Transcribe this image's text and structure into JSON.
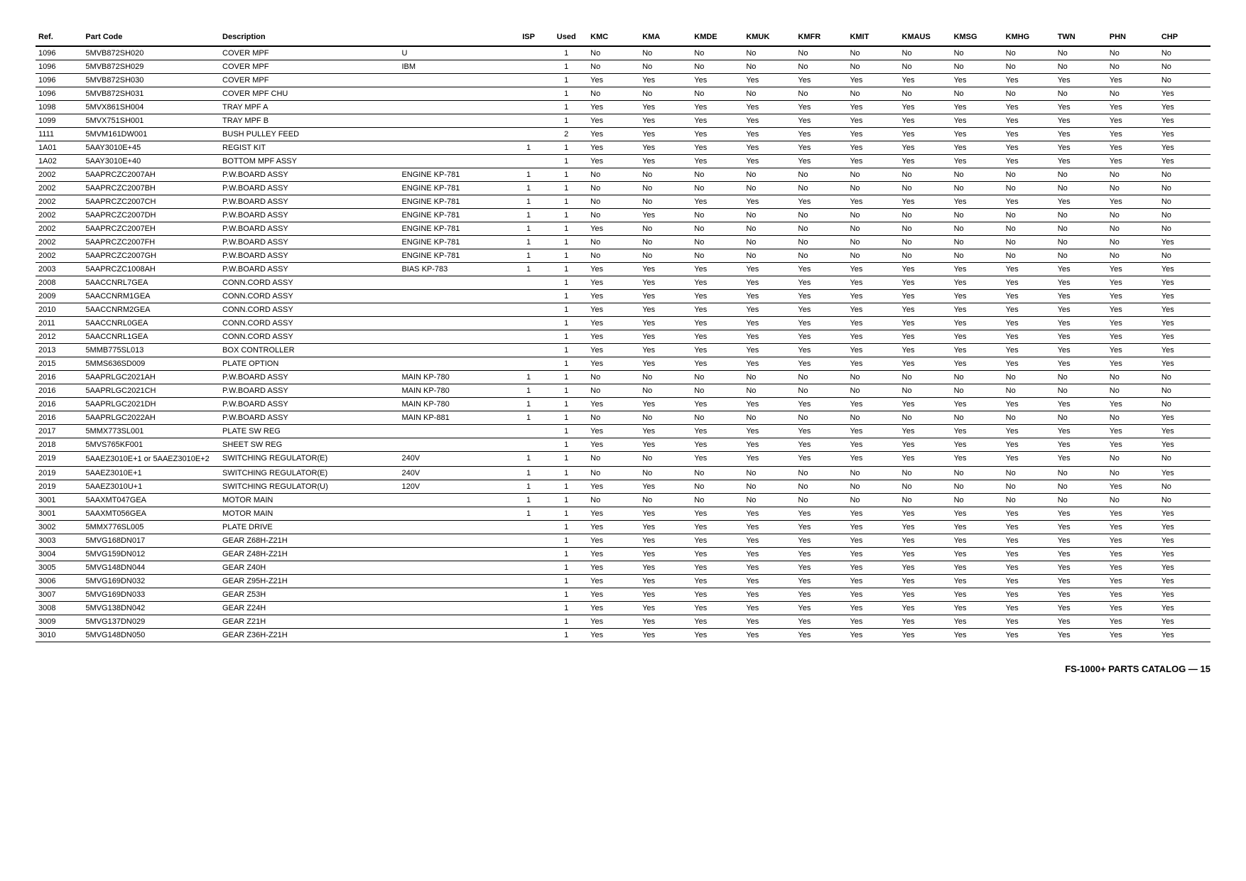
{
  "table": {
    "columns": [
      "Ref.",
      "Part Code",
      "Description",
      "",
      "ISP",
      "Used",
      "KMC",
      "KMA",
      "KMDE",
      "KMUK",
      "KMFR",
      "KMIT",
      "KMAUS",
      "KMSG",
      "KMHG",
      "TWN",
      "PHN",
      "CHP"
    ],
    "rows": [
      [
        "1096",
        "5MVB872SH020",
        "COVER MPF",
        "U",
        "",
        "1",
        "No",
        "No",
        "No",
        "No",
        "No",
        "No",
        "No",
        "No",
        "No",
        "No",
        "No",
        "No"
      ],
      [
        "1096",
        "5MVB872SH029",
        "COVER MPF",
        "IBM",
        "",
        "1",
        "No",
        "No",
        "No",
        "No",
        "No",
        "No",
        "No",
        "No",
        "No",
        "No",
        "No",
        "No"
      ],
      [
        "1096",
        "5MVB872SH030",
        "COVER MPF",
        "",
        "",
        "1",
        "Yes",
        "Yes",
        "Yes",
        "Yes",
        "Yes",
        "Yes",
        "Yes",
        "Yes",
        "Yes",
        "Yes",
        "Yes",
        "No"
      ],
      [
        "1096",
        "5MVB872SH031",
        "COVER MPF CHU",
        "",
        "",
        "1",
        "No",
        "No",
        "No",
        "No",
        "No",
        "No",
        "No",
        "No",
        "No",
        "No",
        "No",
        "Yes"
      ],
      [
        "1098",
        "5MVX861SH004",
        "TRAY MPF A",
        "",
        "",
        "1",
        "Yes",
        "Yes",
        "Yes",
        "Yes",
        "Yes",
        "Yes",
        "Yes",
        "Yes",
        "Yes",
        "Yes",
        "Yes",
        "Yes"
      ],
      [
        "1099",
        "5MVX751SH001",
        "TRAY MPF B",
        "",
        "",
        "1",
        "Yes",
        "Yes",
        "Yes",
        "Yes",
        "Yes",
        "Yes",
        "Yes",
        "Yes",
        "Yes",
        "Yes",
        "Yes",
        "Yes"
      ],
      [
        "1111",
        "5MVM161DW001",
        "BUSH PULLEY FEED",
        "",
        "",
        "2",
        "Yes",
        "Yes",
        "Yes",
        "Yes",
        "Yes",
        "Yes",
        "Yes",
        "Yes",
        "Yes",
        "Yes",
        "Yes",
        "Yes"
      ],
      [
        "1A01",
        "5AAY3010E+45",
        "REGIST KIT",
        "",
        "1",
        "1",
        "Yes",
        "Yes",
        "Yes",
        "Yes",
        "Yes",
        "Yes",
        "Yes",
        "Yes",
        "Yes",
        "Yes",
        "Yes",
        "Yes"
      ],
      [
        "1A02",
        "5AAY3010E+40",
        "BOTTOM MPF ASSY",
        "",
        "",
        "1",
        "Yes",
        "Yes",
        "Yes",
        "Yes",
        "Yes",
        "Yes",
        "Yes",
        "Yes",
        "Yes",
        "Yes",
        "Yes",
        "Yes"
      ],
      [
        "2002",
        "5AAPRCZC2007AH",
        "P.W.BOARD ASSY",
        "ENGINE KP-781",
        "1",
        "1",
        "No",
        "No",
        "No",
        "No",
        "No",
        "No",
        "No",
        "No",
        "No",
        "No",
        "No",
        "No"
      ],
      [
        "2002",
        "5AAPRCZC2007BH",
        "P.W.BOARD ASSY",
        "ENGINE KP-781",
        "1",
        "1",
        "No",
        "No",
        "No",
        "No",
        "No",
        "No",
        "No",
        "No",
        "No",
        "No",
        "No",
        "No"
      ],
      [
        "2002",
        "5AAPRCZC2007CH",
        "P.W.BOARD ASSY",
        "ENGINE KP-781",
        "1",
        "1",
        "No",
        "No",
        "Yes",
        "Yes",
        "Yes",
        "Yes",
        "Yes",
        "Yes",
        "Yes",
        "Yes",
        "Yes",
        "No"
      ],
      [
        "2002",
        "5AAPRCZC2007DH",
        "P.W.BOARD ASSY",
        "ENGINE KP-781",
        "1",
        "1",
        "No",
        "Yes",
        "No",
        "No",
        "No",
        "No",
        "No",
        "No",
        "No",
        "No",
        "No",
        "No"
      ],
      [
        "2002",
        "5AAPRCZC2007EH",
        "P.W.BOARD ASSY",
        "ENGINE KP-781",
        "1",
        "1",
        "Yes",
        "No",
        "No",
        "No",
        "No",
        "No",
        "No",
        "No",
        "No",
        "No",
        "No",
        "No"
      ],
      [
        "2002",
        "5AAPRCZC2007FH",
        "P.W.BOARD ASSY",
        "ENGINE KP-781",
        "1",
        "1",
        "No",
        "No",
        "No",
        "No",
        "No",
        "No",
        "No",
        "No",
        "No",
        "No",
        "No",
        "Yes"
      ],
      [
        "2002",
        "5AAPRCZC2007GH",
        "P.W.BOARD ASSY",
        "ENGINE KP-781",
        "1",
        "1",
        "No",
        "No",
        "No",
        "No",
        "No",
        "No",
        "No",
        "No",
        "No",
        "No",
        "No",
        "No"
      ],
      [
        "2003",
        "5AAPRCZC1008AH",
        "P.W.BOARD ASSY",
        "BIAS KP-783",
        "1",
        "1",
        "Yes",
        "Yes",
        "Yes",
        "Yes",
        "Yes",
        "Yes",
        "Yes",
        "Yes",
        "Yes",
        "Yes",
        "Yes",
        "Yes"
      ],
      [
        "2008",
        "5AACCNRL7GEA",
        "CONN.CORD ASSY",
        "",
        "",
        "1",
        "Yes",
        "Yes",
        "Yes",
        "Yes",
        "Yes",
        "Yes",
        "Yes",
        "Yes",
        "Yes",
        "Yes",
        "Yes",
        "Yes"
      ],
      [
        "2009",
        "5AACCNRM1GEA",
        "CONN.CORD ASSY",
        "",
        "",
        "1",
        "Yes",
        "Yes",
        "Yes",
        "Yes",
        "Yes",
        "Yes",
        "Yes",
        "Yes",
        "Yes",
        "Yes",
        "Yes",
        "Yes"
      ],
      [
        "2010",
        "5AACCNRM2GEA",
        "CONN.CORD ASSY",
        "",
        "",
        "1",
        "Yes",
        "Yes",
        "Yes",
        "Yes",
        "Yes",
        "Yes",
        "Yes",
        "Yes",
        "Yes",
        "Yes",
        "Yes",
        "Yes"
      ],
      [
        "2011",
        "5AACCNRL0GEA",
        "CONN.CORD ASSY",
        "",
        "",
        "1",
        "Yes",
        "Yes",
        "Yes",
        "Yes",
        "Yes",
        "Yes",
        "Yes",
        "Yes",
        "Yes",
        "Yes",
        "Yes",
        "Yes"
      ],
      [
        "2012",
        "5AACCNRL1GEA",
        "CONN.CORD ASSY",
        "",
        "",
        "1",
        "Yes",
        "Yes",
        "Yes",
        "Yes",
        "Yes",
        "Yes",
        "Yes",
        "Yes",
        "Yes",
        "Yes",
        "Yes",
        "Yes"
      ],
      [
        "2013",
        "5MMB775SL013",
        "BOX CONTROLLER",
        "",
        "",
        "1",
        "Yes",
        "Yes",
        "Yes",
        "Yes",
        "Yes",
        "Yes",
        "Yes",
        "Yes",
        "Yes",
        "Yes",
        "Yes",
        "Yes"
      ],
      [
        "2015",
        "5MMS636SD009",
        "PLATE OPTION",
        "",
        "",
        "1",
        "Yes",
        "Yes",
        "Yes",
        "Yes",
        "Yes",
        "Yes",
        "Yes",
        "Yes",
        "Yes",
        "Yes",
        "Yes",
        "Yes"
      ],
      [
        "2016",
        "5AAPRLGC2021AH",
        "P.W.BOARD ASSY",
        "MAIN KP-780",
        "1",
        "1",
        "No",
        "No",
        "No",
        "No",
        "No",
        "No",
        "No",
        "No",
        "No",
        "No",
        "No",
        "No"
      ],
      [
        "2016",
        "5AAPRLGC2021CH",
        "P.W.BOARD ASSY",
        "MAIN KP-780",
        "1",
        "1",
        "No",
        "No",
        "No",
        "No",
        "No",
        "No",
        "No",
        "No",
        "No",
        "No",
        "No",
        "No"
      ],
      [
        "2016",
        "5AAPRLGC2021DH",
        "P.W.BOARD ASSY",
        "MAIN KP-780",
        "1",
        "1",
        "Yes",
        "Yes",
        "Yes",
        "Yes",
        "Yes",
        "Yes",
        "Yes",
        "Yes",
        "Yes",
        "Yes",
        "Yes",
        "No"
      ],
      [
        "2016",
        "5AAPRLGC2022AH",
        "P.W.BOARD ASSY",
        "MAIN KP-881",
        "1",
        "1",
        "No",
        "No",
        "No",
        "No",
        "No",
        "No",
        "No",
        "No",
        "No",
        "No",
        "No",
        "Yes"
      ],
      [
        "2017",
        "5MMX773SL001",
        "PLATE SW REG",
        "",
        "",
        "1",
        "Yes",
        "Yes",
        "Yes",
        "Yes",
        "Yes",
        "Yes",
        "Yes",
        "Yes",
        "Yes",
        "Yes",
        "Yes",
        "Yes"
      ],
      [
        "2018",
        "5MVS765KF001",
        "SHEET SW REG",
        "",
        "",
        "1",
        "Yes",
        "Yes",
        "Yes",
        "Yes",
        "Yes",
        "Yes",
        "Yes",
        "Yes",
        "Yes",
        "Yes",
        "Yes",
        "Yes"
      ],
      [
        "2019",
        "5AAEZ3010E+1 or 5AAEZ3010E+2",
        "SWITCHING REGULATOR(E)",
        "240V",
        "1",
        "1",
        "No",
        "No",
        "Yes",
        "Yes",
        "Yes",
        "Yes",
        "Yes",
        "Yes",
        "Yes",
        "Yes",
        "No",
        "No"
      ],
      [
        "2019",
        "5AAEZ3010E+1",
        "SWITCHING REGULATOR(E)",
        "240V",
        "1",
        "1",
        "No",
        "No",
        "No",
        "No",
        "No",
        "No",
        "No",
        "No",
        "No",
        "No",
        "No",
        "Yes"
      ],
      [
        "2019",
        "5AAEZ3010U+1",
        "SWITCHING REGULATOR(U)",
        "120V",
        "1",
        "1",
        "Yes",
        "Yes",
        "No",
        "No",
        "No",
        "No",
        "No",
        "No",
        "No",
        "No",
        "Yes",
        "No"
      ],
      [
        "3001",
        "5AAXMT047GEA",
        "MOTOR MAIN",
        "",
        "1",
        "1",
        "No",
        "No",
        "No",
        "No",
        "No",
        "No",
        "No",
        "No",
        "No",
        "No",
        "No",
        "No"
      ],
      [
        "3001",
        "5AAXMT056GEA",
        "MOTOR MAIN",
        "",
        "1",
        "1",
        "Yes",
        "Yes",
        "Yes",
        "Yes",
        "Yes",
        "Yes",
        "Yes",
        "Yes",
        "Yes",
        "Yes",
        "Yes",
        "Yes"
      ],
      [
        "3002",
        "5MMX776SL005",
        "PLATE DRIVE",
        "",
        "",
        "1",
        "Yes",
        "Yes",
        "Yes",
        "Yes",
        "Yes",
        "Yes",
        "Yes",
        "Yes",
        "Yes",
        "Yes",
        "Yes",
        "Yes"
      ],
      [
        "3003",
        "5MVG168DN017",
        "GEAR Z68H-Z21H",
        "",
        "",
        "1",
        "Yes",
        "Yes",
        "Yes",
        "Yes",
        "Yes",
        "Yes",
        "Yes",
        "Yes",
        "Yes",
        "Yes",
        "Yes",
        "Yes"
      ],
      [
        "3004",
        "5MVG159DN012",
        "GEAR Z48H-Z21H",
        "",
        "",
        "1",
        "Yes",
        "Yes",
        "Yes",
        "Yes",
        "Yes",
        "Yes",
        "Yes",
        "Yes",
        "Yes",
        "Yes",
        "Yes",
        "Yes"
      ],
      [
        "3005",
        "5MVG148DN044",
        "GEAR Z40H",
        "",
        "",
        "1",
        "Yes",
        "Yes",
        "Yes",
        "Yes",
        "Yes",
        "Yes",
        "Yes",
        "Yes",
        "Yes",
        "Yes",
        "Yes",
        "Yes"
      ],
      [
        "3006",
        "5MVG169DN032",
        "GEAR Z95H-Z21H",
        "",
        "",
        "1",
        "Yes",
        "Yes",
        "Yes",
        "Yes",
        "Yes",
        "Yes",
        "Yes",
        "Yes",
        "Yes",
        "Yes",
        "Yes",
        "Yes"
      ],
      [
        "3007",
        "5MVG169DN033",
        "GEAR Z53H",
        "",
        "",
        "1",
        "Yes",
        "Yes",
        "Yes",
        "Yes",
        "Yes",
        "Yes",
        "Yes",
        "Yes",
        "Yes",
        "Yes",
        "Yes",
        "Yes"
      ],
      [
        "3008",
        "5MVG138DN042",
        "GEAR Z24H",
        "",
        "",
        "1",
        "Yes",
        "Yes",
        "Yes",
        "Yes",
        "Yes",
        "Yes",
        "Yes",
        "Yes",
        "Yes",
        "Yes",
        "Yes",
        "Yes"
      ],
      [
        "3009",
        "5MVG137DN029",
        "GEAR Z21H",
        "",
        "",
        "1",
        "Yes",
        "Yes",
        "Yes",
        "Yes",
        "Yes",
        "Yes",
        "Yes",
        "Yes",
        "Yes",
        "Yes",
        "Yes",
        "Yes"
      ],
      [
        "3010",
        "5MVG148DN050",
        "GEAR Z36H-Z21H",
        "",
        "",
        "1",
        "Yes",
        "Yes",
        "Yes",
        "Yes",
        "Yes",
        "Yes",
        "Yes",
        "Yes",
        "Yes",
        "Yes",
        "Yes",
        "Yes"
      ]
    ]
  },
  "footer": "FS-1000+ PARTS CATALOG — 15"
}
